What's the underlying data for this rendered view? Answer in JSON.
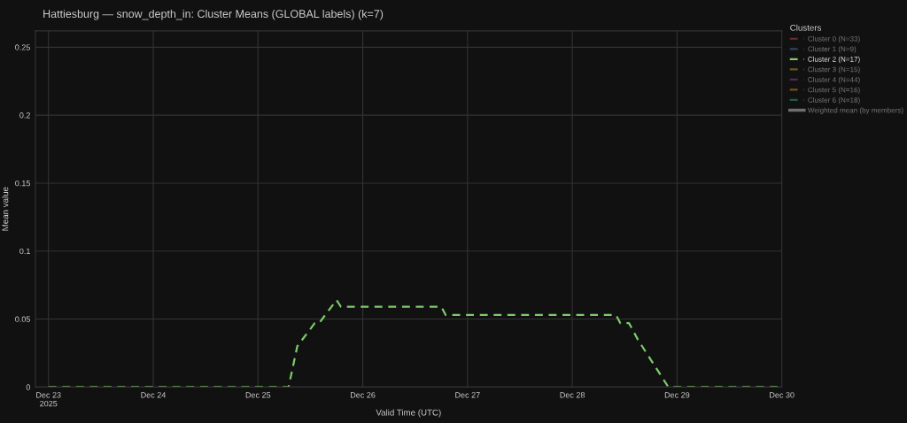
{
  "chart_data": {
    "type": "line",
    "title": "Hattiesburg — snow_depth_in: Cluster Means (GLOBAL labels) (k=7)",
    "xlabel": "Valid Time (UTC)",
    "ylabel": "Mean value",
    "legend_title": "Clusters",
    "legend": "top right",
    "grid": true,
    "line_style": "dashed",
    "marker": "none",
    "x": [
      "2025-12-23T00:00",
      "2025-12-25T07:00",
      "2025-12-25T09:00",
      "2025-12-25T13:00",
      "2025-12-25T14:00",
      "2025-12-25T18:00",
      "2025-12-25T19:00",
      "2025-12-26T18:00",
      "2025-12-26T19:00",
      "2025-12-28T10:00",
      "2025-12-28T11:00",
      "2025-12-28T13:00",
      "2025-12-28T15:00",
      "2025-12-28T22:00",
      "2025-12-30T00:00"
    ],
    "series": [
      {
        "name": "Cluster 0 (N=33)",
        "color": "#c0504d",
        "values": [
          null,
          null,
          null,
          null,
          null,
          null,
          null,
          null,
          null,
          null,
          null,
          null,
          null,
          null,
          null
        ]
      },
      {
        "name": "Cluster 1 (N=9)",
        "color": "#4c78a8",
        "values": [
          null,
          null,
          null,
          null,
          null,
          null,
          null,
          null,
          null,
          null,
          null,
          null,
          null,
          null,
          null
        ]
      },
      {
        "name": "Cluster 2 (N=17)",
        "color": "#7ccc6b",
        "values": [
          0,
          0,
          0.03,
          0.047,
          0.047,
          0.064,
          0.059,
          0.059,
          0.053,
          0.053,
          0.047,
          0.047,
          0.035,
          0,
          0
        ]
      },
      {
        "name": "Cluster 3 (N=15)",
        "color": "#b8a030",
        "values": [
          null,
          null,
          null,
          null,
          null,
          null,
          null,
          null,
          null,
          null,
          null,
          null,
          null,
          null,
          null
        ]
      },
      {
        "name": "Cluster 4 (N=44)",
        "color": "#8e44ad",
        "values": [
          null,
          null,
          null,
          null,
          null,
          null,
          null,
          null,
          null,
          null,
          null,
          null,
          null,
          null,
          null
        ]
      },
      {
        "name": "Cluster 5 (N=16)",
        "color": "#e08a2c",
        "values": [
          null,
          null,
          null,
          null,
          null,
          null,
          null,
          null,
          null,
          null,
          null,
          null,
          null,
          null,
          null
        ]
      },
      {
        "name": "Cluster 6 (N=18)",
        "color": "#2ca58d",
        "values": [
          null,
          null,
          null,
          null,
          null,
          null,
          null,
          null,
          null,
          null,
          null,
          null,
          null,
          null,
          null
        ]
      },
      {
        "name": "Weighted mean (by members)",
        "color": "#cccccc",
        "line_style": "solid",
        "values": [
          null,
          null,
          null,
          null,
          null,
          null,
          null,
          null,
          null,
          null,
          null,
          null,
          null,
          null,
          null
        ]
      }
    ],
    "xlim": [
      "2025-12-22T21:00",
      "2025-12-30T00:00"
    ],
    "xticks": [
      {
        "value": "2025-12-23",
        "label": "Dec 23\n2025"
      },
      {
        "value": "2025-12-24",
        "label": "Dec 24"
      },
      {
        "value": "2025-12-25",
        "label": "Dec 25"
      },
      {
        "value": "2025-12-26",
        "label": "Dec 26"
      },
      {
        "value": "2025-12-27",
        "label": "Dec 27"
      },
      {
        "value": "2025-12-28",
        "label": "Dec 28"
      },
      {
        "value": "2025-12-29",
        "label": "Dec 29"
      },
      {
        "value": "2025-12-30",
        "label": "Dec 30"
      }
    ],
    "ylim": [
      0,
      0.262
    ],
    "yticks": [
      0,
      0.05,
      {
        "value": 0.1,
        "label": "0.1"
      },
      0.15,
      {
        "value": 0.2,
        "label": "0.2"
      },
      0.25
    ]
  }
}
